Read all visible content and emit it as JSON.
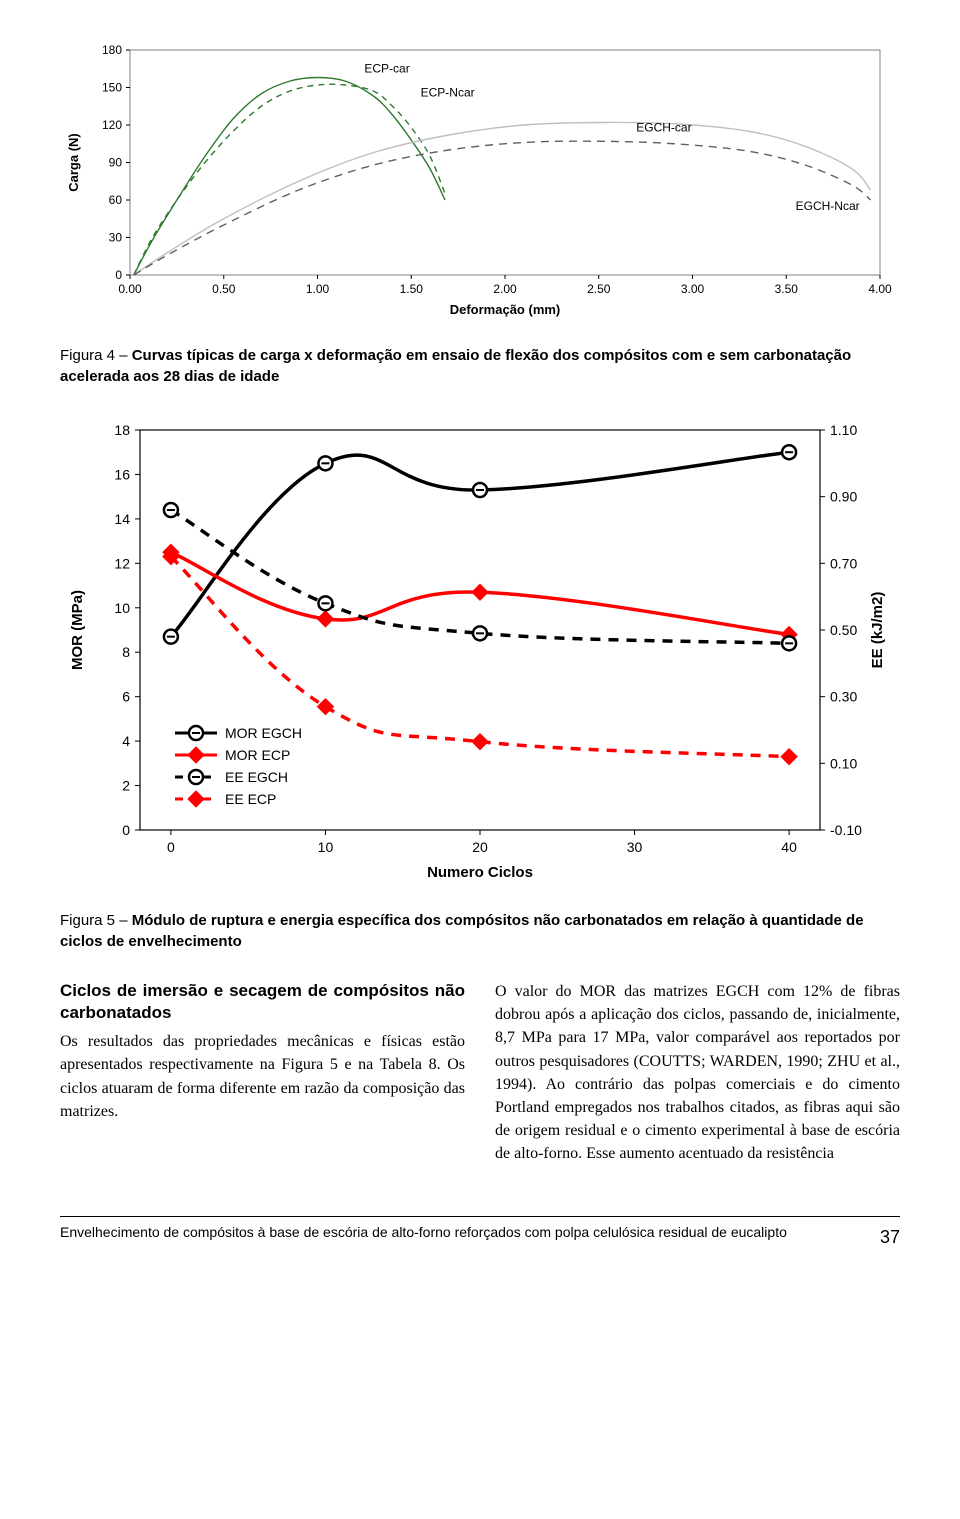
{
  "chart1": {
    "type": "line",
    "ylabel": "Carga (N)",
    "xlabel": "Deformação (mm)",
    "xlim": [
      0,
      4.0
    ],
    "ylim": [
      0,
      180
    ],
    "xticks": [
      "0.00",
      "0.50",
      "1.00",
      "1.50",
      "2.00",
      "2.50",
      "3.00",
      "3.50",
      "4.00"
    ],
    "yticks": [
      "0",
      "30",
      "60",
      "90",
      "120",
      "150",
      "180"
    ],
    "axis_fontsize": 12,
    "label_fontsize": 13,
    "bg": "#ffffff",
    "border_color": "#808080",
    "series": [
      {
        "name": "ECP-car",
        "label": "ECP-car",
        "label_pos": [
          1.25,
          162
        ],
        "color": "#2e7a2e",
        "points": [
          [
            0.02,
            0
          ],
          [
            0.12,
            28
          ],
          [
            0.25,
            60
          ],
          [
            0.4,
            95
          ],
          [
            0.55,
            125
          ],
          [
            0.7,
            145
          ],
          [
            0.85,
            155
          ],
          [
            1.0,
            158
          ],
          [
            1.15,
            155
          ],
          [
            1.3,
            143
          ],
          [
            1.4,
            128
          ],
          [
            1.5,
            108
          ],
          [
            1.6,
            85
          ],
          [
            1.68,
            60
          ]
        ]
      },
      {
        "name": "ECP-Ncar",
        "label": "ECP-Ncar",
        "label_pos": [
          1.55,
          143
        ],
        "color": "#2e7a2e",
        "dash": "6 5",
        "points": [
          [
            0.02,
            0
          ],
          [
            0.12,
            30
          ],
          [
            0.25,
            60
          ],
          [
            0.4,
            90
          ],
          [
            0.55,
            115
          ],
          [
            0.7,
            135
          ],
          [
            0.85,
            147
          ],
          [
            1.0,
            152
          ],
          [
            1.15,
            152
          ],
          [
            1.3,
            147
          ],
          [
            1.4,
            135
          ],
          [
            1.5,
            118
          ],
          [
            1.6,
            95
          ],
          [
            1.68,
            65
          ]
        ]
      },
      {
        "name": "EGCH-car",
        "label": "EGCH-car",
        "label_pos": [
          2.7,
          115
        ],
        "color": "#bfbfbf",
        "points": [
          [
            0.02,
            0
          ],
          [
            0.2,
            18
          ],
          [
            0.5,
            45
          ],
          [
            0.9,
            75
          ],
          [
            1.3,
            98
          ],
          [
            1.7,
            112
          ],
          [
            2.1,
            120
          ],
          [
            2.5,
            122
          ],
          [
            2.9,
            121
          ],
          [
            3.3,
            115
          ],
          [
            3.6,
            103
          ],
          [
            3.85,
            85
          ],
          [
            3.95,
            68
          ]
        ]
      },
      {
        "name": "EGCH-Ncar",
        "label": "EGCH-Ncar",
        "label_pos": [
          3.55,
          52
        ],
        "color": "#606060",
        "dash": "8 6",
        "points": [
          [
            0.02,
            0
          ],
          [
            0.2,
            16
          ],
          [
            0.5,
            40
          ],
          [
            0.9,
            68
          ],
          [
            1.3,
            88
          ],
          [
            1.7,
            100
          ],
          [
            2.1,
            106
          ],
          [
            2.5,
            107
          ],
          [
            2.9,
            105
          ],
          [
            3.3,
            99
          ],
          [
            3.6,
            88
          ],
          [
            3.85,
            72
          ],
          [
            3.95,
            60
          ]
        ]
      }
    ]
  },
  "caption1_prefix": "Figura 4 – ",
  "caption1_bold": "Curvas típicas de carga x deformação em ensaio de flexão dos compósitos com e sem carbonatação acelerada aos 28 dias de idade",
  "chart2": {
    "type": "line-dual-axis",
    "ylabel": "MOR (MPa)",
    "y2label": "EE (kJ/m2)",
    "xlabel": "Numero Ciclos",
    "xlim": [
      -2,
      42
    ],
    "ylim_left": [
      0,
      18
    ],
    "ylim_right": [
      -0.1,
      1.1
    ],
    "xticks": [
      "0",
      "10",
      "20",
      "30",
      "40"
    ],
    "yticks_left": [
      "0",
      "2",
      "4",
      "6",
      "8",
      "10",
      "12",
      "14",
      "16",
      "18"
    ],
    "yticks_right": [
      "-0.10",
      "0.10",
      "0.30",
      "0.50",
      "0.70",
      "0.90",
      "1.10"
    ],
    "axis_fontsize": 14,
    "label_fontsize": 15,
    "bg": "#ffffff",
    "border_color": "#000000",
    "legend_items": [
      "MOR EGCH",
      "MOR ECP",
      "EE EGCH",
      "EE ECP"
    ],
    "legend_colors": [
      "#000000",
      "#ff0000",
      "#000000",
      "#ff0000"
    ],
    "legend_dashes": [
      "",
      "",
      "8 6",
      "8 6"
    ],
    "legend_markers": [
      "circle",
      "diamond",
      "circle",
      "diamond"
    ],
    "series": [
      {
        "name": "MOR-EGCH",
        "color": "#000000",
        "marker": "circle",
        "axis": "left",
        "points": [
          [
            0,
            8.7
          ],
          [
            10,
            16.5
          ],
          [
            20,
            15.3
          ],
          [
            40,
            17.0
          ]
        ]
      },
      {
        "name": "MOR-ECP",
        "color": "#ff0000",
        "marker": "diamond",
        "axis": "left",
        "points": [
          [
            0,
            12.5
          ],
          [
            10,
            9.5
          ],
          [
            20,
            10.7
          ],
          [
            40,
            8.8
          ]
        ]
      },
      {
        "name": "EE-EGCH",
        "color": "#000000",
        "marker": "circle",
        "axis": "right",
        "dash": "10 8",
        "points": [
          [
            0,
            0.86
          ],
          [
            10,
            0.58
          ],
          [
            20,
            0.49
          ],
          [
            40,
            0.46
          ]
        ]
      },
      {
        "name": "EE-ECP",
        "color": "#ff0000",
        "marker": "diamond",
        "axis": "right",
        "dash": "10 8",
        "points": [
          [
            0,
            0.72
          ],
          [
            10,
            0.27
          ],
          [
            20,
            0.165
          ],
          [
            40,
            0.12
          ]
        ]
      }
    ]
  },
  "caption2_prefix": "Figura 5 – ",
  "caption2_bold": "Módulo de ruptura e energia específica dos compósitos não carbonatados em relação à quantidade de ciclos de envelhecimento",
  "body": {
    "subhead": "Ciclos de imersão e secagem de compósitos não carbonatados",
    "col1": "Os resultados das propriedades mecânicas e físicas estão apresentados respectivamente na Figura 5 e na Tabela 8. Os ciclos atuaram de forma diferente em razão da composição das matrizes.",
    "col2": "O valor do MOR das matrizes EGCH com 12% de fibras dobrou após a aplicação dos ciclos, passando de, inicialmente, 8,7 MPa para 17 MPa, valor comparável aos reportados por outros pesquisadores (COUTTS; WARDEN, 1990; ZHU et al., 1994). Ao contrário das polpas comerciais e do cimento Portland empregados nos trabalhos citados, as fibras aqui são de origem residual e o cimento experimental à base de escória de alto-forno. Esse aumento acentuado da resistência"
  },
  "footer": {
    "text": "Envelhecimento de compósitos à base de escória de alto-forno reforçados com polpa celulósica residual de eucalipto",
    "page": "37"
  }
}
